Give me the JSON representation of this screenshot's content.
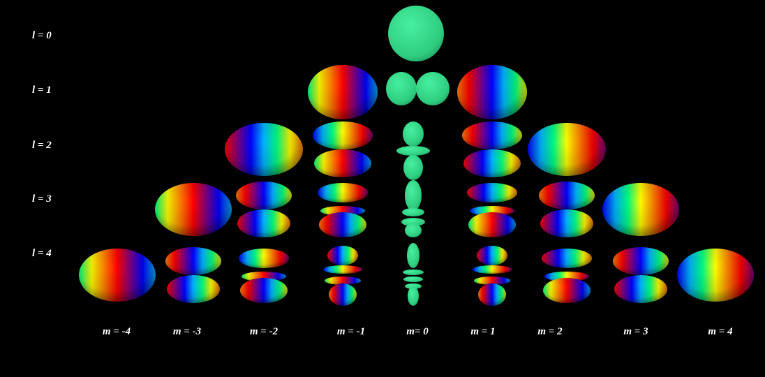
{
  "l_labels": [
    "l = 0",
    "l = 1",
    "l = 2",
    "l = 3",
    "l = 4"
  ],
  "m_labels": [
    "m = -4",
    "m = -3",
    "m = -2",
    "m = -1",
    "m= 0",
    "m = 1",
    "m = 2",
    "m = 3",
    "m = 4"
  ],
  "colors": {
    "background": "#000000",
    "text": "#ffffff",
    "m_zero_green": "#2ecc7e",
    "colormap": [
      "#0000ff",
      "#00b4ff",
      "#00ff80",
      "#ffff00",
      "#ff8000",
      "#ff0000",
      "#800080"
    ]
  },
  "orbitals": [
    {
      "l": 0,
      "m": 0,
      "shape": "sphere"
    },
    {
      "l": 1,
      "m": -1,
      "shape": "torus"
    },
    {
      "l": 1,
      "m": 0,
      "shape": "dumbbell-horizontal"
    },
    {
      "l": 1,
      "m": 1,
      "shape": "torus"
    },
    {
      "l": 2,
      "m": -2,
      "shape": "torus"
    },
    {
      "l": 2,
      "m": -1,
      "shape": "two-lobes"
    },
    {
      "l": 2,
      "m": 0,
      "shape": "dz2"
    },
    {
      "l": 2,
      "m": 1,
      "shape": "two-lobes"
    },
    {
      "l": 2,
      "m": 2,
      "shape": "torus"
    },
    {
      "l": 3,
      "m": -3,
      "shape": "torus"
    },
    {
      "l": 3,
      "m": -2,
      "shape": "two-lobes"
    },
    {
      "l": 3,
      "m": -1,
      "shape": "three-lobes"
    },
    {
      "l": 3,
      "m": 0,
      "shape": "stacked"
    },
    {
      "l": 3,
      "m": 1,
      "shape": "three-lobes"
    },
    {
      "l": 3,
      "m": 2,
      "shape": "two-lobes"
    },
    {
      "l": 3,
      "m": 3,
      "shape": "torus"
    },
    {
      "l": 4,
      "m": -4,
      "shape": "torus"
    },
    {
      "l": 4,
      "m": -3,
      "shape": "two-lobes"
    },
    {
      "l": 4,
      "m": -2,
      "shape": "three-lobes"
    },
    {
      "l": 4,
      "m": -1,
      "shape": "four-lobes"
    },
    {
      "l": 4,
      "m": 0,
      "shape": "stacked"
    },
    {
      "l": 4,
      "m": 1,
      "shape": "four-lobes"
    },
    {
      "l": 4,
      "m": 2,
      "shape": "three-lobes"
    },
    {
      "l": 4,
      "m": 3,
      "shape": "two-lobes"
    },
    {
      "l": 4,
      "m": 4,
      "shape": "torus"
    }
  ]
}
